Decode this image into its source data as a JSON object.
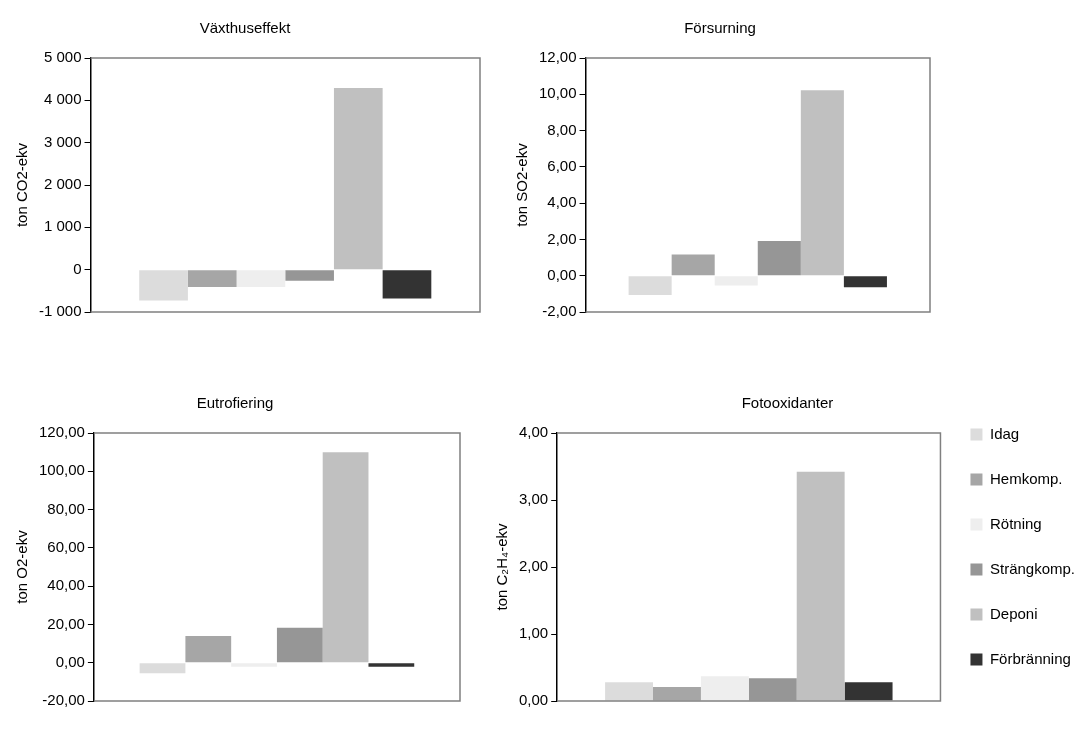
{
  "chart_data": [
    {
      "type": "bar",
      "title": "Växthuseffekt",
      "ylabel": "ton CO2-ekv",
      "categories": [
        null
      ],
      "ylim": [
        -1000,
        5000
      ],
      "yticks": [
        {
          "value": -1000,
          "label": "-1 000"
        },
        0,
        {
          "value": 1000,
          "label": "1 000"
        },
        {
          "value": 2000,
          "label": "2 000"
        },
        {
          "value": 3000,
          "label": "3 000"
        },
        {
          "value": 4000,
          "label": "4 000"
        },
        {
          "value": 5000,
          "label": "5 000"
        }
      ],
      "grid": false,
      "legend": false,
      "series": [
        {
          "color": "#dcdcdc",
          "values": [
            -730
          ]
        },
        {
          "color": "#a6a6a6",
          "values": [
            -410
          ]
        },
        {
          "color": "#eeeeee",
          "values": [
            -410
          ]
        },
        {
          "color": "#969696",
          "values": [
            -260
          ]
        },
        {
          "color": "#c0c0c0",
          "values": [
            4290
          ]
        },
        {
          "color": "#333333",
          "values": [
            -680
          ]
        }
      ]
    },
    {
      "type": "bar",
      "title": "Försurning",
      "ylabel": "ton SO2-ekv",
      "categories": [
        null
      ],
      "ylim": [
        -2,
        12
      ],
      "yticks": [
        {
          "value": -2,
          "label": "-2,00"
        },
        {
          "value": 0,
          "label": "0,00"
        },
        {
          "value": 2,
          "label": "2,00"
        },
        {
          "value": 4,
          "label": "4,00"
        },
        {
          "value": 6,
          "label": "6,00"
        },
        {
          "value": 8,
          "label": "8,00"
        },
        {
          "value": 10,
          "label": "10,00"
        },
        {
          "value": 12,
          "label": "12,00"
        }
      ],
      "grid": false,
      "legend": false,
      "series": [
        {
          "color": "#dcdcdc",
          "values": [
            -1.06
          ]
        },
        {
          "color": "#a6a6a6",
          "values": [
            1.17
          ]
        },
        {
          "color": "#eeeeee",
          "values": [
            -0.54
          ]
        },
        {
          "color": "#969696",
          "values": [
            1.91
          ]
        },
        {
          "color": "#c0c0c0",
          "values": [
            10.22
          ]
        },
        {
          "color": "#333333",
          "values": [
            -0.63
          ]
        }
      ]
    },
    {
      "type": "bar",
      "title": "Eutrofiering",
      "ylabel": "ton O2-ekv",
      "categories": [
        null
      ],
      "ylim": [
        -20,
        120
      ],
      "yticks": [
        {
          "value": -20,
          "label": "-20,00"
        },
        {
          "value": 0,
          "label": "0,00"
        },
        {
          "value": 20,
          "label": "20,00"
        },
        {
          "value": 40,
          "label": "40,00"
        },
        {
          "value": 60,
          "label": "60,00"
        },
        {
          "value": 80,
          "label": "80,00"
        },
        {
          "value": 100,
          "label": "100,00"
        },
        {
          "value": 120,
          "label": "120,00"
        }
      ],
      "grid": false,
      "legend": false,
      "series": [
        {
          "color": "#dcdcdc",
          "values": [
            -5.5
          ]
        },
        {
          "color": "#a6a6a6",
          "values": [
            13.9
          ]
        },
        {
          "color": "#eeeeee",
          "values": [
            -2.1
          ]
        },
        {
          "color": "#969696",
          "values": [
            18.3
          ]
        },
        {
          "color": "#c0c0c0",
          "values": [
            110
          ]
        },
        {
          "color": "#333333",
          "values": [
            -2.1
          ]
        }
      ]
    },
    {
      "type": "bar",
      "title": "Fotooxidanter",
      "ylabel": "ton C₂H₄-ekv",
      "categories": [
        null
      ],
      "ylim": [
        0,
        4
      ],
      "yticks": [
        {
          "value": 0,
          "label": "0,00"
        },
        {
          "value": 1,
          "label": "1,00"
        },
        {
          "value": 2,
          "label": "2,00"
        },
        {
          "value": 3,
          "label": "3,00"
        },
        {
          "value": 4,
          "label": "4,00"
        }
      ],
      "grid": false,
      "legend": "right",
      "series": [
        {
          "name": "Idag",
          "color": "#dcdcdc",
          "values": [
            0.28
          ]
        },
        {
          "name": "Hemkomp.",
          "color": "#a6a6a6",
          "values": [
            0.21
          ]
        },
        {
          "name": "Rötning",
          "color": "#eeeeee",
          "values": [
            0.37
          ]
        },
        {
          "name": "Strängkomp.",
          "color": "#969696",
          "values": [
            0.34
          ]
        },
        {
          "name": "Deponi",
          "color": "#c0c0c0",
          "values": [
            3.42
          ]
        },
        {
          "name": "Förbränning",
          "color": "#333333",
          "values": [
            0.28
          ]
        }
      ]
    }
  ]
}
